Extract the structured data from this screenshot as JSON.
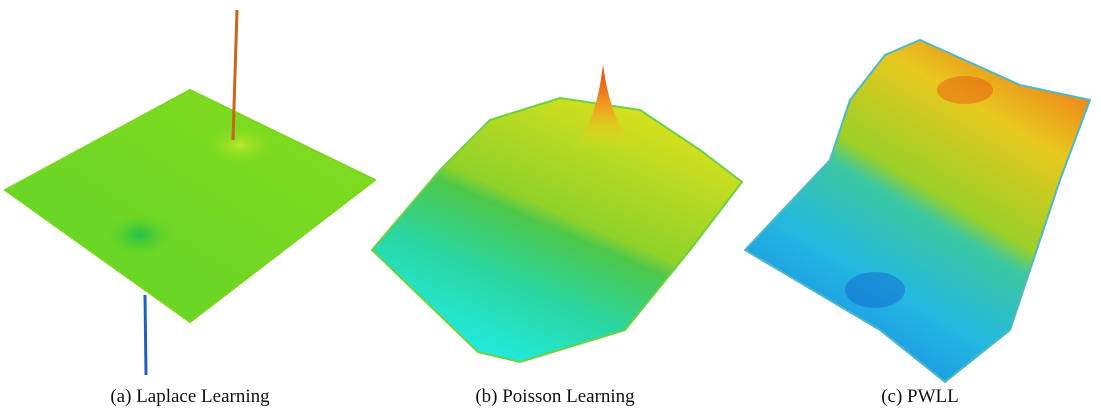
{
  "figure": {
    "panels": [
      {
        "caption": "(a) Laplace Learning"
      },
      {
        "caption": "(b) Poisson Learning"
      },
      {
        "caption": "(c) PWLL"
      }
    ]
  }
}
